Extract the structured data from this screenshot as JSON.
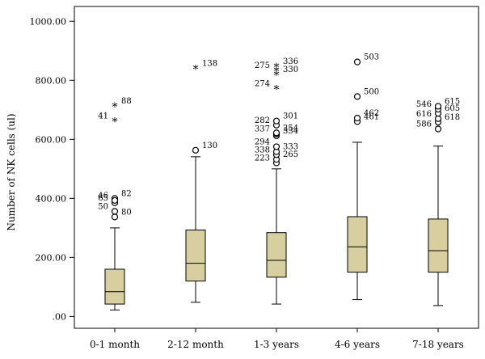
{
  "chart_data": {
    "type": "box",
    "title": "",
    "xlabel": "",
    "ylabel": "Number of NK cells (ul)",
    "ylim": [
      -40,
      1050
    ],
    "y_ticks": [
      0,
      200,
      400,
      600,
      800,
      1000
    ],
    "y_tick_labels": [
      ".00",
      "200.00",
      "400.00",
      "600.00",
      "800.00",
      "1000.00"
    ],
    "box_color": "#d8cfa0",
    "categories": [
      "0-1 month",
      "2-12 month",
      "1-3 years",
      "4-6 years",
      "7-18 years"
    ],
    "boxes": [
      {
        "category": "0-1 month",
        "whisker_low": 22,
        "q1": 42,
        "median": 84,
        "q3": 160,
        "whisker_high": 300,
        "outliers": [
          {
            "label": "50",
            "value": 356,
            "marker": "circle"
          },
          {
            "label": "80",
            "value": 337,
            "marker": "circle"
          },
          {
            "label": "65",
            "value": 385,
            "marker": "circle"
          },
          {
            "label": "82",
            "value": 400,
            "marker": "circle"
          },
          {
            "label": "46",
            "value": 393,
            "marker": "circle"
          },
          {
            "label": "88",
            "value": 713,
            "marker": "star"
          },
          {
            "label": "41",
            "value": 662,
            "marker": "star"
          }
        ]
      },
      {
        "category": "2-12 month",
        "whisker_low": 48,
        "q1": 120,
        "median": 180,
        "q3": 293,
        "whisker_high": 541,
        "outliers": [
          {
            "label": "130",
            "value": 563,
            "marker": "circle"
          },
          {
            "label": "138",
            "value": 840,
            "marker": "star"
          }
        ]
      },
      {
        "category": "1-3 years",
        "whisker_low": 42,
        "q1": 133,
        "median": 190,
        "q3": 284,
        "whisker_high": 500,
        "outliers": [
          {
            "label": "223",
            "value": 520,
            "marker": "circle"
          },
          {
            "label": "265",
            "value": 532,
            "marker": "circle"
          },
          {
            "label": "338",
            "value": 548,
            "marker": "circle"
          },
          {
            "label": "333",
            "value": 558,
            "marker": "circle"
          },
          {
            "label": "294",
            "value": 575,
            "marker": "circle"
          },
          {
            "label": "334",
            "value": 612,
            "marker": "circle"
          },
          {
            "label": "337",
            "value": 618,
            "marker": "circle"
          },
          {
            "label": "254",
            "value": 622,
            "marker": "circle"
          },
          {
            "label": "282",
            "value": 648,
            "marker": "circle"
          },
          {
            "label": "301",
            "value": 662,
            "marker": "circle"
          },
          {
            "label": "274",
            "value": 772,
            "marker": "star"
          },
          {
            "label": "330",
            "value": 820,
            "marker": "star"
          },
          {
            "label": "275",
            "value": 834,
            "marker": "star"
          },
          {
            "label": "336",
            "value": 848,
            "marker": "star"
          }
        ]
      },
      {
        "category": "4-6 years",
        "whisker_low": 57,
        "q1": 150,
        "median": 236,
        "q3": 338,
        "whisker_high": 590,
        "outliers": [
          {
            "label": "461",
            "value": 660,
            "marker": "circle"
          },
          {
            "label": "462",
            "value": 672,
            "marker": "circle"
          },
          {
            "label": "500",
            "value": 745,
            "marker": "circle"
          },
          {
            "label": "503",
            "value": 862,
            "marker": "circle"
          }
        ]
      },
      {
        "category": "7-18 years",
        "whisker_low": 37,
        "q1": 150,
        "median": 223,
        "q3": 330,
        "whisker_high": 577,
        "outliers": [
          {
            "label": "586",
            "value": 635,
            "marker": "circle"
          },
          {
            "label": "618",
            "value": 658,
            "marker": "circle"
          },
          {
            "label": "616",
            "value": 670,
            "marker": "circle"
          },
          {
            "label": "605",
            "value": 688,
            "marker": "circle"
          },
          {
            "label": "546",
            "value": 702,
            "marker": "circle"
          },
          {
            "label": "615",
            "value": 712,
            "marker": "circle"
          }
        ]
      }
    ]
  }
}
